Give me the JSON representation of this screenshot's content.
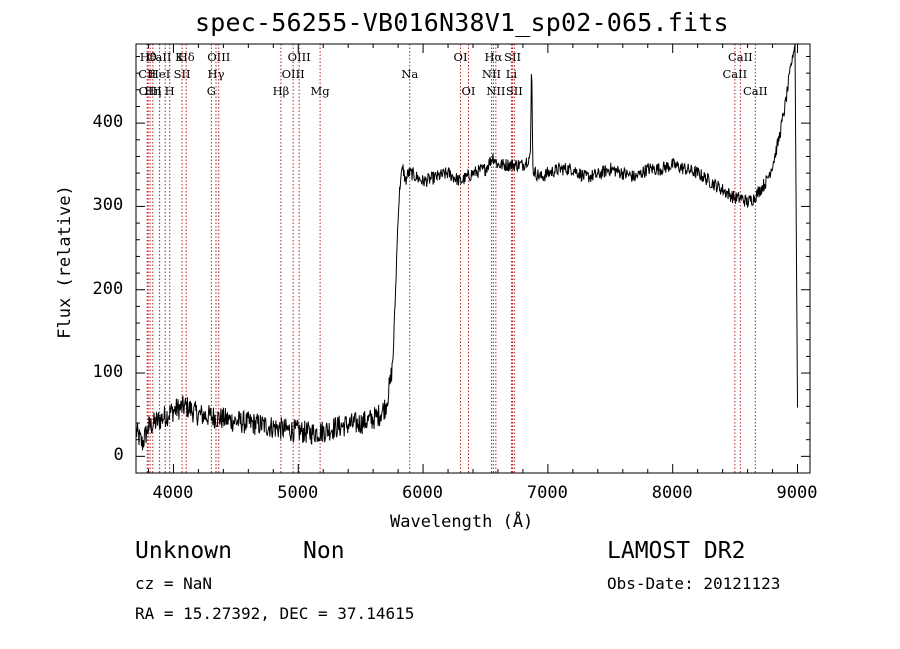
{
  "title": "spec-56255-VB016N38V1_sp02-065.fits",
  "info": {
    "class": "Unknown",
    "subclass": "Non",
    "survey": "LAMOST DR2",
    "cz": "cz = NaN",
    "obs_date": "Obs-Date: 20121123",
    "coords": "RA =  15.27392, DEC =  37.14615"
  },
  "chart_data": {
    "type": "line",
    "title": "spec-56255-VB016N38V1_sp02-065.fits",
    "xlabel": "Wavelength (Å)",
    "ylabel": "Flux (relative)",
    "xlim": [
      3700,
      9100
    ],
    "ylim": [
      -20,
      495
    ],
    "xticks": [
      4000,
      5000,
      6000,
      7000,
      8000,
      9000
    ],
    "yticks": [
      0,
      100,
      200,
      300,
      400
    ],
    "grid": false,
    "series": [
      {
        "x": [
          3700,
          3750,
          3800,
          3850,
          3900,
          3950,
          4000,
          4050,
          4100,
          4150,
          4200,
          4300,
          4400,
          4500,
          4600,
          4700,
          4800,
          4900,
          5000,
          5100,
          5200,
          5300,
          5400,
          5500,
          5600,
          5650,
          5700,
          5720,
          5740,
          5760,
          5780,
          5800,
          5820,
          5840,
          5860,
          5880,
          5900,
          5950,
          6000,
          6100,
          6200,
          6300,
          6400,
          6500,
          6560,
          6600,
          6700,
          6800,
          6860,
          6870,
          6880,
          6900,
          6950,
          7000,
          7100,
          7200,
          7300,
          7400,
          7500,
          7600,
          7700,
          7800,
          7900,
          8000,
          8100,
          8200,
          8300,
          8400,
          8500,
          8550,
          8600,
          8650,
          8700,
          8750,
          8800,
          8850,
          8900,
          8950,
          8980,
          9000
        ],
        "y": [
          30,
          15,
          35,
          40,
          45,
          50,
          55,
          58,
          60,
          55,
          50,
          48,
          45,
          42,
          40,
          38,
          35,
          32,
          30,
          28,
          30,
          35,
          38,
          40,
          45,
          50,
          60,
          75,
          90,
          120,
          200,
          290,
          335,
          345,
          330,
          340,
          340,
          335,
          330,
          335,
          340,
          330,
          340,
          345,
          360,
          350,
          350,
          350,
          360,
          480,
          345,
          340,
          335,
          340,
          345,
          345,
          335,
          338,
          345,
          340,
          335,
          345,
          345,
          350,
          345,
          340,
          330,
          320,
          310,
          310,
          305,
          310,
          320,
          330,
          350,
          380,
          420,
          470,
          495,
          60
        ]
      }
    ],
    "lines": [
      {
        "name": "Hθ",
        "x": 3798,
        "row": 0
      },
      {
        "name": "CaII K",
        "x": 3934,
        "row": 0
      },
      {
        "name": "Hδ",
        "x": 4102,
        "row": 0
      },
      {
        "name": "OIII",
        "x": 4363,
        "row": 0
      },
      {
        "name": "OIII",
        "x": 5007,
        "row": 0
      },
      {
        "name": "OI",
        "x": 6300,
        "row": 0
      },
      {
        "name": "Hα",
        "x": 6563,
        "row": 0
      },
      {
        "name": "SII",
        "x": 6717,
        "row": 0
      },
      {
        "name": "CaII",
        "x": 8542,
        "row": 0
      },
      {
        "name": "CII",
        "x": 3790,
        "row": 1
      },
      {
        "name": "HeI",
        "x": 3889,
        "row": 1
      },
      {
        "name": "SII",
        "x": 4069,
        "row": 1
      },
      {
        "name": "Hγ",
        "x": 4341,
        "row": 1
      },
      {
        "name": "OIII",
        "x": 4959,
        "row": 1
      },
      {
        "name": "Na",
        "x": 5893,
        "row": 1
      },
      {
        "name": "NII",
        "x": 6548,
        "row": 1
      },
      {
        "name": "Li",
        "x": 6708,
        "row": 1
      },
      {
        "name": "CaII",
        "x": 8498,
        "row": 1
      },
      {
        "name": "OIII",
        "x": 3813,
        "row": 2
      },
      {
        "name": "Hη",
        "x": 3835,
        "row": 2
      },
      {
        "name": "H",
        "x": 3970,
        "row": 2
      },
      {
        "name": "G",
        "x": 4304,
        "row": 2
      },
      {
        "name": "Hβ",
        "x": 4861,
        "row": 2
      },
      {
        "name": "Mg",
        "x": 5175,
        "row": 2
      },
      {
        "name": "OI",
        "x": 6364,
        "row": 2
      },
      {
        "name": "NII",
        "x": 6583,
        "row": 2
      },
      {
        "name": "SII",
        "x": 6731,
        "row": 2
      },
      {
        "name": "CaII",
        "x": 8662,
        "row": 2
      }
    ]
  }
}
